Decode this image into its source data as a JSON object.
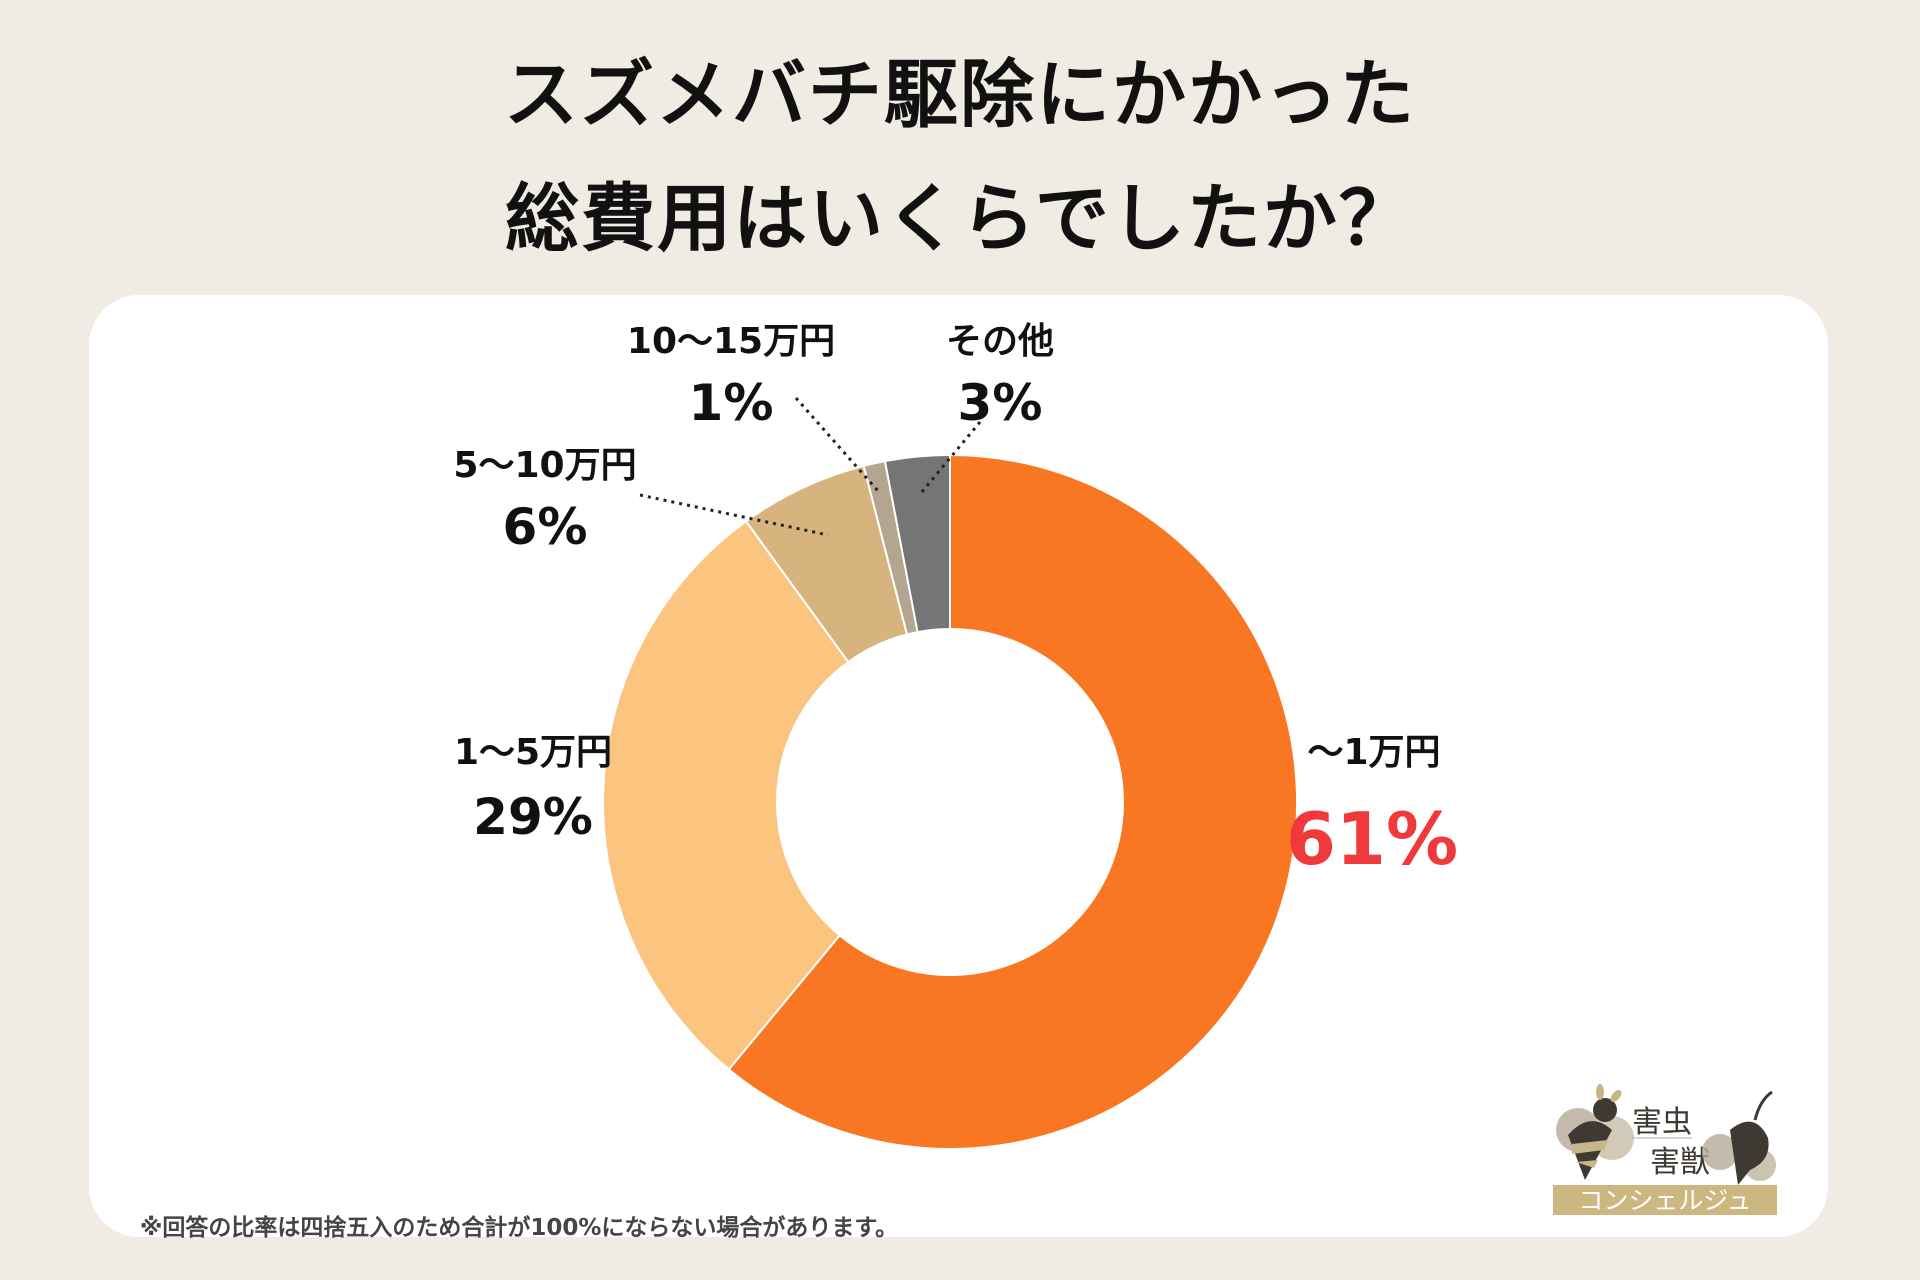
{
  "title": {
    "line1": "スズメバチ駆除にかかった",
    "line2": "総費用はいくらでしたか？"
  },
  "chart_data": {
    "type": "pie",
    "variant": "donut",
    "start": "top",
    "direction": "clockwise",
    "title": "スズメバチ駆除にかかった総費用はいくらでしたか？",
    "slices": [
      {
        "label": "〜1万円",
        "value": 61,
        "pct_text": "61%",
        "color": "#F97722",
        "highlight": "#F0393A"
      },
      {
        "label": "1〜5万円",
        "value": 29,
        "pct_text": "29%",
        "color": "#FBC47F"
      },
      {
        "label": "5〜10万円",
        "value": 6,
        "pct_text": "6%",
        "color": "#D7B37E"
      },
      {
        "label": "10〜15万円",
        "value": 1,
        "pct_text": "1%",
        "color": "#B3A58F"
      },
      {
        "label": "その他",
        "value": 3,
        "pct_text": "3%",
        "color": "#757575"
      }
    ]
  },
  "footnote": "※回答の比率は四捨五入のため合計が100%にならない場合があります。",
  "logo": {
    "line1": "害虫",
    "line2": "害獣",
    "line3": "コンシェルジュ"
  }
}
